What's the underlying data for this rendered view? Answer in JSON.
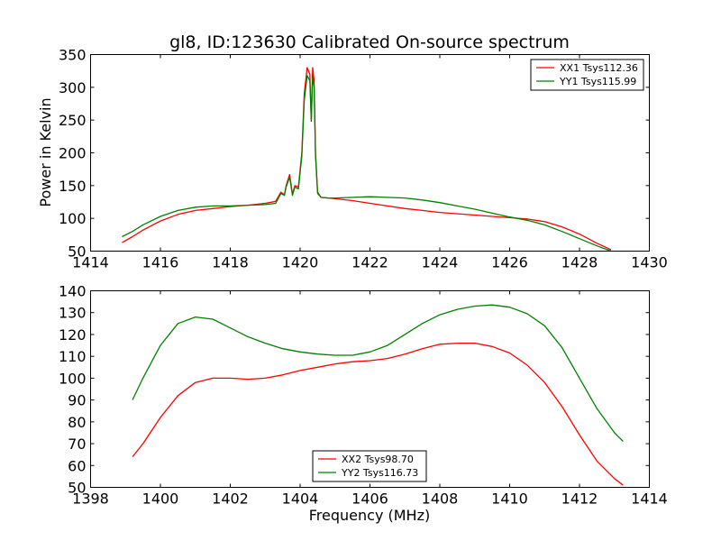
{
  "chart_data": [
    {
      "type": "line",
      "title": "gl8, ID:123630 Calibrated On-source spectrum",
      "xlabel": "",
      "ylabel": "Power in Kelvin",
      "xlim": [
        1414,
        1430
      ],
      "ylim": [
        50,
        350
      ],
      "xticks": [
        1414,
        1416,
        1418,
        1420,
        1422,
        1424,
        1426,
        1428,
        1430
      ],
      "yticks": [
        50,
        100,
        150,
        200,
        250,
        300,
        350
      ],
      "grid": false,
      "legend": "top-right",
      "series": [
        {
          "name": "XX1 Tsys112.36",
          "color": "#ff0000",
          "x": [
            1414.9,
            1415.2,
            1415.5,
            1416.0,
            1416.5,
            1417.0,
            1417.5,
            1418.0,
            1418.5,
            1419.0,
            1419.3,
            1419.45,
            1419.55,
            1419.6,
            1419.7,
            1419.78,
            1419.85,
            1419.95,
            1420.05,
            1420.12,
            1420.2,
            1420.28,
            1420.32,
            1420.36,
            1420.4,
            1420.44,
            1420.5,
            1420.6,
            1420.8,
            1421.0,
            1421.5,
            1422.0,
            1422.5,
            1423.0,
            1423.5,
            1424.0,
            1424.5,
            1425.0,
            1425.5,
            1426.0,
            1426.5,
            1427.0,
            1427.5,
            1428.0,
            1428.5,
            1428.9
          ],
          "values": [
            63,
            72,
            82,
            96,
            106,
            112,
            115,
            118,
            120,
            123,
            126,
            140,
            136,
            150,
            167,
            137,
            150,
            148,
            200,
            290,
            330,
            320,
            250,
            330,
            310,
            200,
            140,
            132,
            131,
            130,
            127,
            123,
            119,
            115,
            112,
            109,
            107,
            105,
            103,
            101,
            99,
            95,
            87,
            76,
            62,
            52
          ]
        },
        {
          "name": "YY1 Tsys115.99",
          "color": "#008000",
          "x": [
            1414.9,
            1415.2,
            1415.5,
            1416.0,
            1416.5,
            1417.0,
            1417.5,
            1418.0,
            1418.5,
            1419.0,
            1419.3,
            1419.45,
            1419.55,
            1419.6,
            1419.7,
            1419.78,
            1419.85,
            1419.95,
            1420.05,
            1420.12,
            1420.2,
            1420.28,
            1420.32,
            1420.36,
            1420.4,
            1420.44,
            1420.5,
            1420.6,
            1420.8,
            1421.0,
            1421.5,
            1422.0,
            1422.5,
            1423.0,
            1423.5,
            1424.0,
            1424.5,
            1425.0,
            1425.5,
            1426.0,
            1426.5,
            1427.0,
            1427.5,
            1428.0,
            1428.5,
            1428.9
          ],
          "values": [
            72,
            80,
            90,
            103,
            112,
            117,
            119,
            119,
            120,
            121,
            123,
            138,
            135,
            148,
            163,
            135,
            148,
            145,
            195,
            280,
            318,
            310,
            248,
            318,
            300,
            195,
            138,
            132,
            131,
            131,
            132,
            133,
            132,
            131,
            128,
            124,
            119,
            114,
            108,
            102,
            97,
            90,
            80,
            69,
            58,
            50
          ]
        }
      ]
    },
    {
      "type": "line",
      "title": "",
      "xlabel": "Frequency (MHz)",
      "ylabel": "",
      "xlim": [
        1398,
        1414
      ],
      "ylim": [
        50,
        140
      ],
      "xticks": [
        1398,
        1400,
        1402,
        1404,
        1406,
        1408,
        1410,
        1412,
        1414
      ],
      "yticks": [
        50,
        60,
        70,
        80,
        90,
        100,
        110,
        120,
        130,
        140
      ],
      "grid": false,
      "legend": "bottom-center",
      "series": [
        {
          "name": "XX2 Tsys98.70",
          "color": "#ff0000",
          "x": [
            1399.2,
            1399.5,
            1400.0,
            1400.5,
            1401.0,
            1401.5,
            1402.0,
            1402.5,
            1403.0,
            1403.5,
            1404.0,
            1404.5,
            1405.0,
            1405.5,
            1406.0,
            1406.5,
            1407.0,
            1407.5,
            1408.0,
            1408.5,
            1409.0,
            1409.5,
            1410.0,
            1410.5,
            1411.0,
            1411.5,
            1412.0,
            1412.5,
            1413.0,
            1413.25
          ],
          "values": [
            64,
            70,
            82,
            92,
            98,
            100,
            100,
            99.5,
            100,
            101.5,
            103.5,
            105,
            106.5,
            107.5,
            108,
            109,
            111,
            113.5,
            115.5,
            116,
            116,
            114.5,
            111.5,
            106,
            98,
            87,
            74,
            62,
            54,
            51
          ]
        },
        {
          "name": "YY2 Tsys116.73",
          "color": "#008000",
          "x": [
            1399.2,
            1399.5,
            1400.0,
            1400.5,
            1401.0,
            1401.5,
            1402.0,
            1402.5,
            1403.0,
            1403.5,
            1404.0,
            1404.5,
            1405.0,
            1405.5,
            1406.0,
            1406.5,
            1407.0,
            1407.5,
            1408.0,
            1408.5,
            1409.0,
            1409.5,
            1410.0,
            1410.5,
            1411.0,
            1411.5,
            1412.0,
            1412.5,
            1413.0,
            1413.25
          ],
          "values": [
            90,
            100,
            115,
            125,
            128,
            127,
            123,
            119,
            116,
            113.5,
            112,
            111,
            110.5,
            110.5,
            112,
            115,
            120,
            125,
            129,
            131.5,
            133,
            133.5,
            132.5,
            129.5,
            124,
            114,
            100,
            86,
            75,
            71
          ]
        }
      ]
    }
  ]
}
